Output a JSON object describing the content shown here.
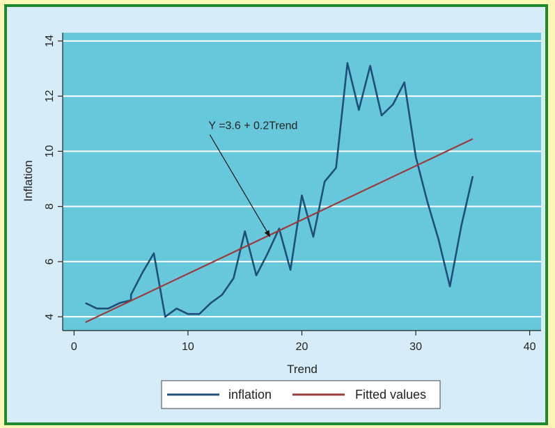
{
  "chart_data": {
    "type": "line",
    "xlabel": "Trend",
    "ylabel": "Inflation",
    "xlim": [
      -1,
      41
    ],
    "ylim": [
      3.5,
      14.3
    ],
    "xticks": [
      0,
      10,
      20,
      30,
      40
    ],
    "yticks": [
      4,
      6,
      8,
      10,
      12,
      14
    ],
    "grid": true,
    "legend_position": "bottom",
    "annotation": {
      "text": "Y =3.6 + 0.2Trend",
      "points_to": {
        "x": 17.2,
        "y": 6.9
      },
      "text_at": {
        "x": 11.8,
        "y": 10.6
      }
    },
    "series": [
      {
        "name": "inflation",
        "color": "#1f4e79",
        "x": [
          1,
          2,
          3,
          4,
          5,
          5,
          6,
          7,
          8,
          9,
          10,
          11,
          12,
          13,
          14,
          15,
          16,
          17,
          18,
          19,
          20,
          21,
          22,
          23,
          24,
          25,
          26,
          27,
          28,
          29,
          30,
          31,
          32,
          33,
          34,
          35
        ],
        "y": [
          4.5,
          4.3,
          4.3,
          4.5,
          4.6,
          4.8,
          5.6,
          6.3,
          4.0,
          4.3,
          4.1,
          4.1,
          4.5,
          4.8,
          5.4,
          7.1,
          5.5,
          6.3,
          7.2,
          5.7,
          8.4,
          6.9,
          8.9,
          9.4,
          13.2,
          11.5,
          13.1,
          11.3,
          11.7,
          12.5,
          9.8,
          8.2,
          6.8,
          5.1,
          7.3,
          9.1
        ]
      },
      {
        "name": "Fitted values",
        "color": "#9b3b3b",
        "x": [
          1,
          35
        ],
        "y": [
          3.8,
          10.45
        ]
      }
    ]
  },
  "colors": {
    "plot_bg": "#67c8dc",
    "grid": "#ffffff",
    "outer_bg": "#d6ecf8",
    "frame": "#1e8a2e"
  }
}
